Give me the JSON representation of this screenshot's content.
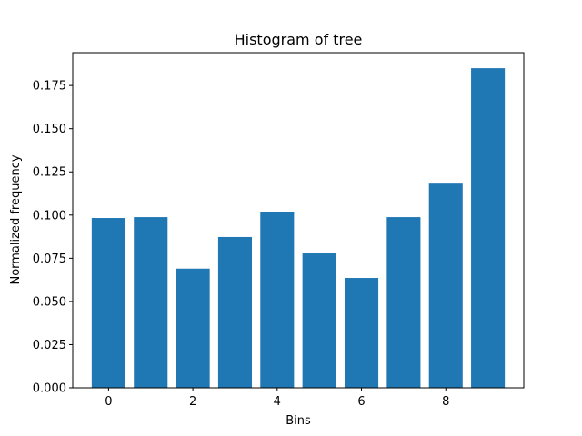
{
  "chart_data": {
    "type": "bar",
    "title": "Histogram of tree",
    "xlabel": "Bins",
    "ylabel": "Normalized frequency",
    "categories": [
      0,
      1,
      2,
      3,
      4,
      5,
      6,
      7,
      8,
      9
    ],
    "values": [
      0.0983,
      0.0988,
      0.069,
      0.0873,
      0.102,
      0.0778,
      0.0636,
      0.0988,
      0.1182,
      0.185
    ],
    "xlim": [
      -0.85,
      9.85
    ],
    "ylim": [
      0,
      0.194
    ],
    "xticks": [
      0,
      2,
      4,
      6,
      8
    ],
    "yticks": [
      0.0,
      0.025,
      0.05,
      0.075,
      0.1,
      0.125,
      0.15,
      0.175
    ],
    "ytick_labels": [
      "0.000",
      "0.025",
      "0.050",
      "0.075",
      "0.100",
      "0.125",
      "0.150",
      "0.175"
    ],
    "bar_width": 0.8,
    "bar_color": "#1f77b4",
    "grid": false,
    "legend": "none"
  }
}
